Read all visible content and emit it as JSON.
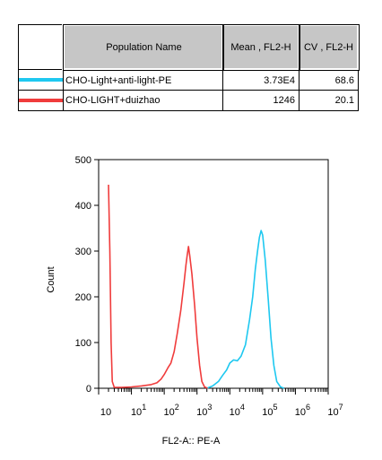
{
  "legend": {
    "headers": {
      "population_name": "Population Name",
      "mean": "Mean , FL2-H",
      "cv": "CV , FL2-H"
    },
    "rows": [
      {
        "name": "CHO-Light+anti-light-PE",
        "mean": "3.73E4",
        "cv": "68.6",
        "color": "#1ec8f0"
      },
      {
        "name": "CHO-LIGHT+duizhao",
        "mean": "1246",
        "cv": "20.1",
        "color": "#f03c3c"
      }
    ]
  },
  "chart_data": {
    "type": "line",
    "xlabel": "FL2-A:: PE-A",
    "ylabel": "Count",
    "x_scale": "log",
    "xlim": [
      1,
      10000000
    ],
    "ylim": [
      0,
      500
    ],
    "y_ticks": [
      0,
      100,
      200,
      300,
      400,
      500
    ],
    "x_tick_labels": [
      {
        "base": "10",
        "exp": ""
      },
      {
        "base": "10",
        "exp": "1"
      },
      {
        "base": "10",
        "exp": "2"
      },
      {
        "base": "10",
        "exp": "3"
      },
      {
        "base": "10",
        "exp": "4"
      },
      {
        "base": "10",
        "exp": "5"
      },
      {
        "base": "10",
        "exp": "6"
      },
      {
        "base": "10",
        "exp": "7"
      }
    ],
    "series": [
      {
        "name": "CHO-Light+anti-light-PE",
        "color": "#1ec8f0",
        "points": [
          [
            2000,
            0
          ],
          [
            3000,
            5
          ],
          [
            4500,
            15
          ],
          [
            6000,
            28
          ],
          [
            8000,
            40
          ],
          [
            10000,
            55
          ],
          [
            13000,
            62
          ],
          [
            17000,
            60
          ],
          [
            22000,
            70
          ],
          [
            30000,
            95
          ],
          [
            40000,
            150
          ],
          [
            50000,
            200
          ],
          [
            60000,
            260
          ],
          [
            70000,
            300
          ],
          [
            80000,
            330
          ],
          [
            90000,
            345
          ],
          [
            100000,
            335
          ],
          [
            120000,
            280
          ],
          [
            150000,
            190
          ],
          [
            180000,
            110
          ],
          [
            220000,
            50
          ],
          [
            270000,
            15
          ],
          [
            350000,
            3
          ],
          [
            450000,
            0
          ]
        ]
      },
      {
        "name": "CHO-LIGHT+duizhao",
        "color": "#f03c3c",
        "points": [
          [
            2,
            445
          ],
          [
            2.2,
            300
          ],
          [
            2.4,
            100
          ],
          [
            2.6,
            15
          ],
          [
            3,
            2
          ],
          [
            5,
            2
          ],
          [
            10,
            3
          ],
          [
            20,
            5
          ],
          [
            40,
            8
          ],
          [
            60,
            12
          ],
          [
            80,
            20
          ],
          [
            100,
            30
          ],
          [
            130,
            45
          ],
          [
            160,
            55
          ],
          [
            200,
            80
          ],
          [
            250,
            120
          ],
          [
            320,
            170
          ],
          [
            400,
            230
          ],
          [
            460,
            270
          ],
          [
            500,
            290
          ],
          [
            550,
            310
          ],
          [
            600,
            290
          ],
          [
            700,
            250
          ],
          [
            850,
            180
          ],
          [
            1000,
            110
          ],
          [
            1200,
            50
          ],
          [
            1400,
            15
          ],
          [
            1700,
            3
          ],
          [
            2100,
            0
          ]
        ]
      }
    ]
  }
}
